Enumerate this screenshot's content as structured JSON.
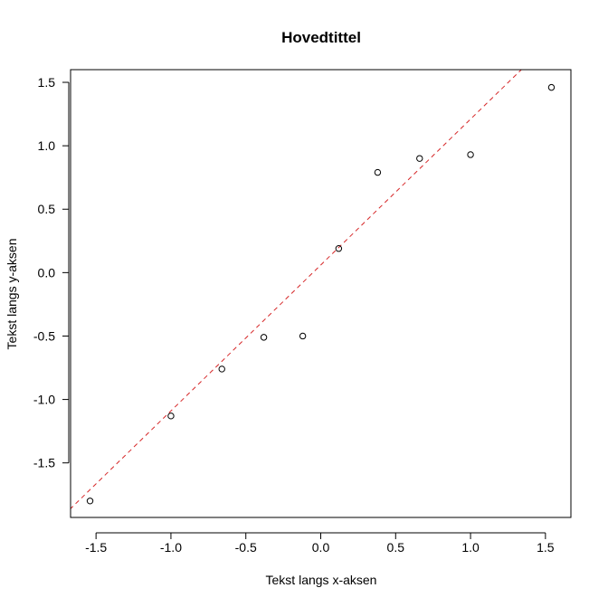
{
  "chart_data": {
    "type": "scatter",
    "title": "Hovedtittel",
    "xlabel": "Tekst langs x-aksen",
    "ylabel": "Tekst langs y-aksen",
    "xlim": [
      -1.67,
      1.67
    ],
    "ylim": [
      -1.93,
      1.6
    ],
    "x_ticks": [
      -1.5,
      -1.0,
      -0.5,
      0.0,
      0.5,
      1.0,
      1.5
    ],
    "x_tick_labels": [
      "-1.5",
      "-1.0",
      "-0.5",
      "0.0",
      "0.5",
      "1.0",
      "1.5"
    ],
    "y_ticks": [
      -1.5,
      -1.0,
      -0.5,
      0.0,
      0.5,
      1.0,
      1.5
    ],
    "y_tick_labels": [
      "-1.5",
      "-1.0",
      "-0.5",
      "0.0",
      "0.5",
      "1.0",
      "1.5"
    ],
    "points": [
      {
        "x": -1.54,
        "y": -1.8
      },
      {
        "x": -1.0,
        "y": -1.13
      },
      {
        "x": -0.66,
        "y": -0.76
      },
      {
        "x": -0.38,
        "y": -0.51
      },
      {
        "x": -0.12,
        "y": -0.5
      },
      {
        "x": 0.12,
        "y": 0.19
      },
      {
        "x": 0.38,
        "y": 0.79
      },
      {
        "x": 0.66,
        "y": 0.9
      },
      {
        "x": 1.0,
        "y": 0.93
      },
      {
        "x": 1.54,
        "y": 1.46
      }
    ],
    "reference_line": {
      "type": "qq-line",
      "intercept": 0.06,
      "slope": 1.15,
      "color": "#d62728",
      "style": "dashed"
    },
    "point_color": "#000000",
    "grid": false
  }
}
